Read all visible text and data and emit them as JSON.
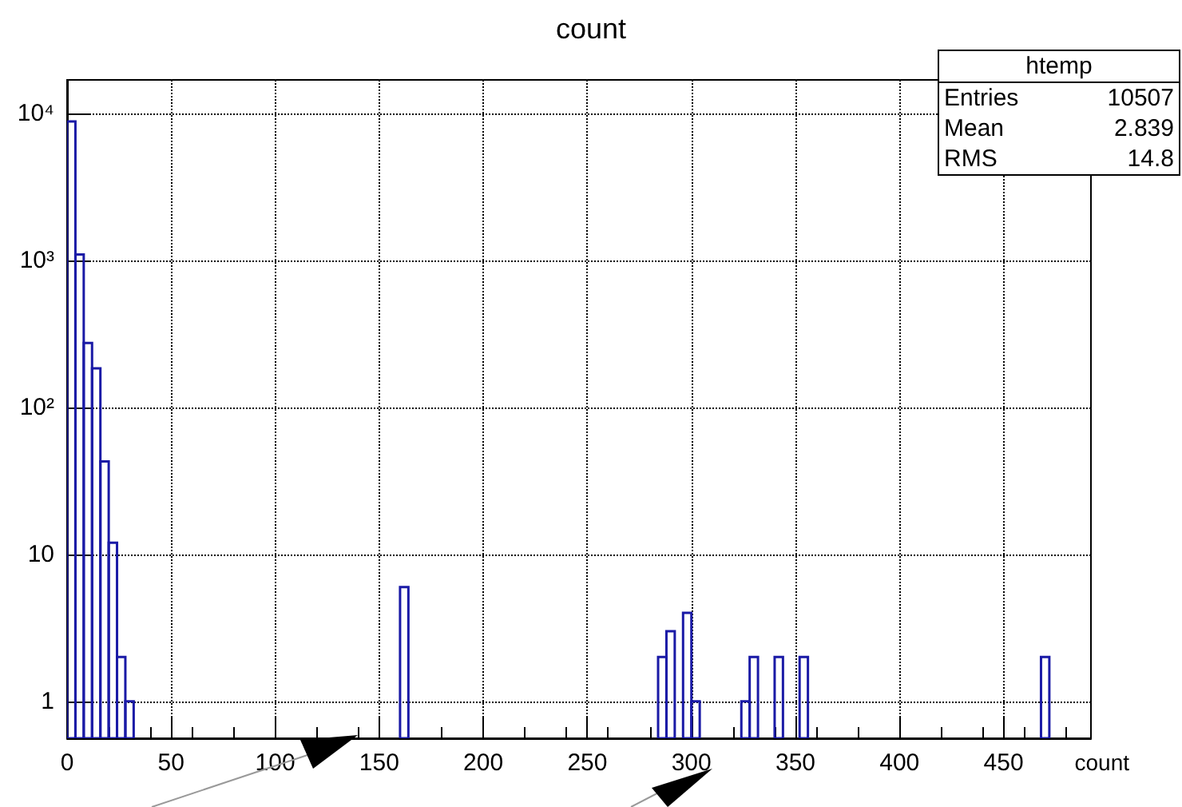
{
  "chart_data": {
    "type": "histogram",
    "title": "count",
    "xlabel": "count",
    "bins": [
      0,
      4,
      8,
      12,
      16,
      20,
      24,
      28,
      32,
      36,
      40,
      44,
      48,
      52,
      56,
      60,
      64,
      68,
      72,
      76,
      80,
      84,
      88,
      92,
      96,
      100,
      104,
      108,
      112,
      116,
      120,
      124,
      128,
      132,
      136,
      140,
      144,
      148,
      152,
      156,
      160,
      164,
      168,
      172,
      176,
      180,
      184,
      188,
      192,
      196,
      200,
      204,
      208,
      212,
      216,
      220,
      224,
      228,
      232,
      236,
      240,
      244,
      248,
      252,
      256,
      260,
      264,
      268,
      272,
      276,
      280,
      284,
      288,
      292,
      296,
      300,
      304,
      308,
      312,
      316,
      320,
      324,
      328,
      332,
      336,
      340,
      344,
      348,
      352,
      356,
      360,
      364,
      368,
      372,
      376,
      380,
      384,
      388,
      392,
      396,
      400,
      404,
      408,
      412,
      416,
      420,
      424,
      428,
      432,
      436,
      440,
      444,
      448,
      452,
      456,
      460,
      464,
      468,
      472,
      476,
      480,
      484,
      488,
      492
    ],
    "values": [
      8860,
      1100,
      275,
      185,
      43,
      12,
      2,
      1,
      null,
      null,
      null,
      null,
      null,
      null,
      null,
      null,
      null,
      null,
      null,
      null,
      null,
      null,
      null,
      null,
      null,
      null,
      null,
      null,
      null,
      null,
      null,
      null,
      null,
      null,
      null,
      null,
      null,
      null,
      null,
      null,
      6,
      null,
      null,
      null,
      null,
      null,
      null,
      null,
      null,
      null,
      null,
      null,
      null,
      null,
      null,
      null,
      null,
      null,
      null,
      null,
      null,
      null,
      null,
      null,
      null,
      null,
      null,
      null,
      null,
      null,
      null,
      2,
      3,
      null,
      4,
      1,
      null,
      null,
      null,
      null,
      null,
      1,
      2,
      null,
      null,
      2,
      null,
      null,
      2,
      null,
      null,
      null,
      null,
      null,
      null,
      null,
      null,
      null,
      null,
      null,
      null,
      null,
      null,
      null,
      null,
      null,
      null,
      null,
      null,
      null,
      null,
      null,
      null,
      null,
      null,
      null,
      null,
      2,
      null,
      null,
      null,
      null,
      null
    ],
    "color": "#1a1aa6",
    "log": true,
    "grid": true,
    "xlim": [
      0,
      492
    ],
    "xticks": [
      0,
      50,
      100,
      150,
      200,
      250,
      300,
      350,
      400,
      450
    ],
    "ylim": [
      0.56,
      17000
    ],
    "yticks": [
      1,
      10,
      {
        "value": 100,
        "label": "10²"
      },
      {
        "value": 1000,
        "label": "10³"
      },
      {
        "value": 10000,
        "label": "10⁴"
      }
    ],
    "annotations": [
      "htemp",
      "Entries",
      "10507",
      "Mean",
      "2.839",
      "RMS",
      "14.8"
    ]
  }
}
